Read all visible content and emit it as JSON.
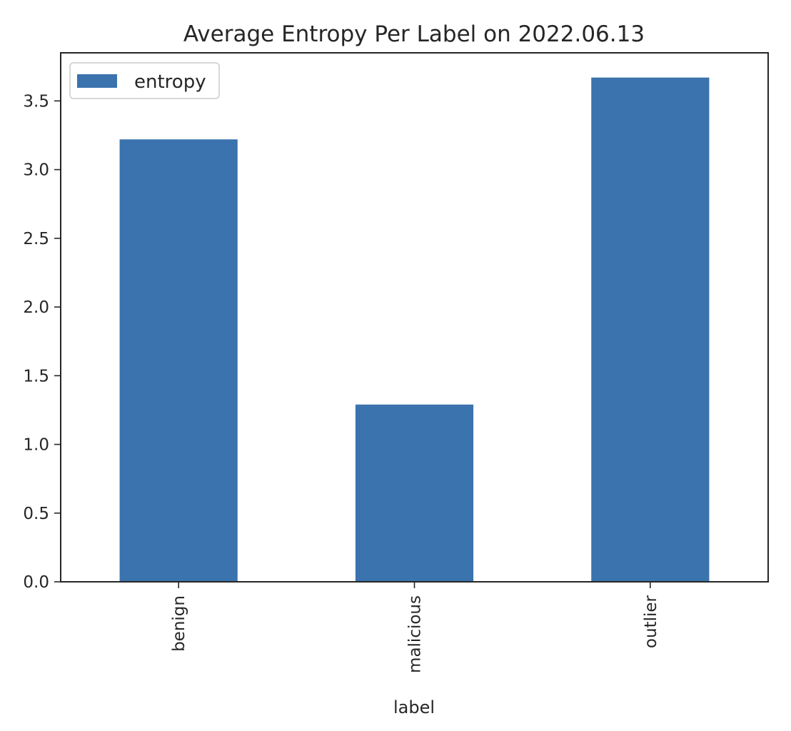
{
  "chart_data": {
    "type": "bar",
    "title": "Average Entropy Per Label on 2022.06.13",
    "xlabel": "label",
    "ylabel": "",
    "categories": [
      "benign",
      "malicious",
      "outlier"
    ],
    "series": [
      {
        "name": "entropy",
        "values": [
          3.22,
          1.29,
          3.67
        ],
        "color": "#3a73ad"
      }
    ],
    "ylim": [
      0,
      3.85
    ],
    "yticks": [
      0.0,
      0.5,
      1.0,
      1.5,
      2.0,
      2.5,
      3.0,
      3.5
    ],
    "ytick_labels": [
      "0.0",
      "0.5",
      "1.0",
      "1.5",
      "2.0",
      "2.5",
      "3.0",
      "3.5"
    ],
    "legend": {
      "position": "upper-left",
      "entries": [
        "entropy"
      ]
    },
    "grid": false,
    "xtick_rotation": "vertical"
  }
}
